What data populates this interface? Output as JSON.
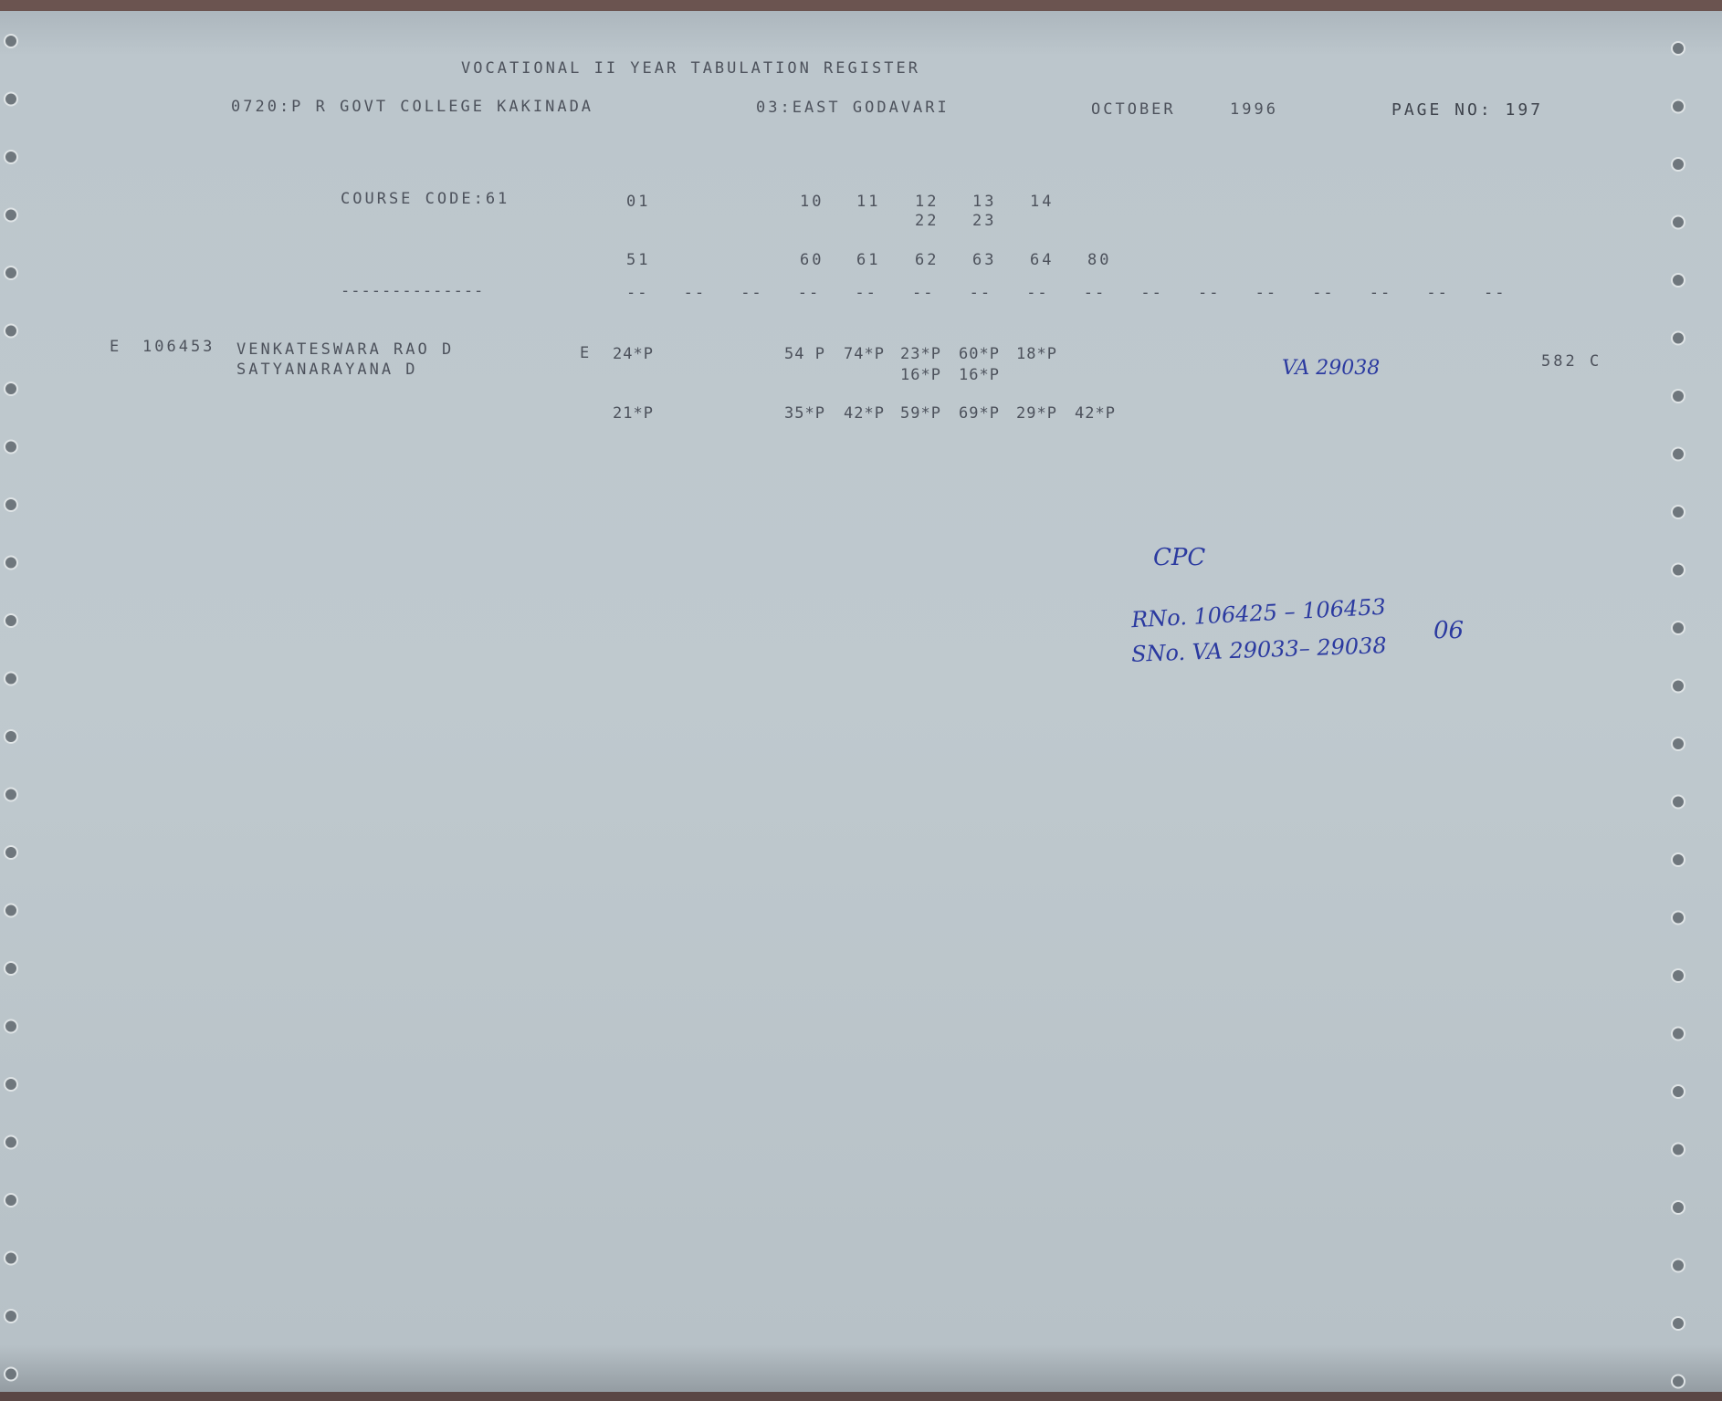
{
  "header": {
    "title": "VOCATIONAL II YEAR TABULATION REGISTER",
    "college": "0720:P R GOVT COLLEGE KAKINADA",
    "district": "03:EAST GODAVARI",
    "month": "OCTOBER",
    "year": "1996",
    "page": "PAGE NO: 197"
  },
  "course": {
    "label": "COURSE CODE:61",
    "codes_row1": [
      "01",
      "10",
      "11",
      "12",
      "13",
      "14"
    ],
    "codes_row2": [
      "22",
      "23"
    ],
    "codes_row3": [
      "51",
      "60",
      "61",
      "62",
      "63",
      "64",
      "80"
    ],
    "separator": "--------------",
    "dashes": [
      "--",
      "--",
      "--",
      "--",
      "--",
      "--",
      "--",
      "--",
      "--",
      "--",
      "--",
      "--",
      "--",
      "--",
      "--",
      "--"
    ]
  },
  "record": {
    "type": "E",
    "roll": "106453",
    "name": "VENKATESWARA RAO D",
    "father": "SATYANARAYANA D",
    "medium": "E",
    "marks_row1": [
      "24*P",
      "54 P",
      "74*P",
      "23*P",
      "60*P",
      "18*P"
    ],
    "marks_row2": [
      "16*P",
      "16*P"
    ],
    "marks_row3": [
      "21*P",
      "35*P",
      "42*P",
      "59*P",
      "69*P",
      "29*P",
      "42*P"
    ],
    "serial": "VA 29038",
    "total": "582 C"
  },
  "notes": {
    "cpc": "CPC",
    "rno": "RNo. 106425 – 106453",
    "sno": "SNo. VA 29033– 29038",
    "count": "06"
  }
}
